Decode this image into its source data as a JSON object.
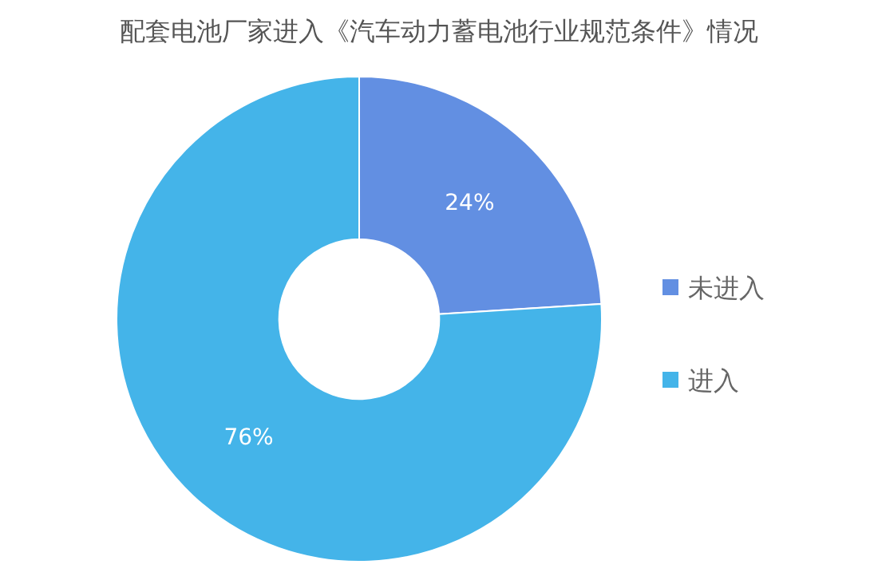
{
  "chart_data": {
    "type": "donut",
    "title": "配套电池厂家进入《汽车动力蓄电池行业规范条件》情况",
    "categories": [
      "未进入",
      "进入"
    ],
    "values": [
      24,
      76
    ],
    "colors": [
      "#628fe2",
      "#44b4e9"
    ],
    "value_labels": [
      "24%",
      "76%"
    ],
    "legend": "right"
  }
}
